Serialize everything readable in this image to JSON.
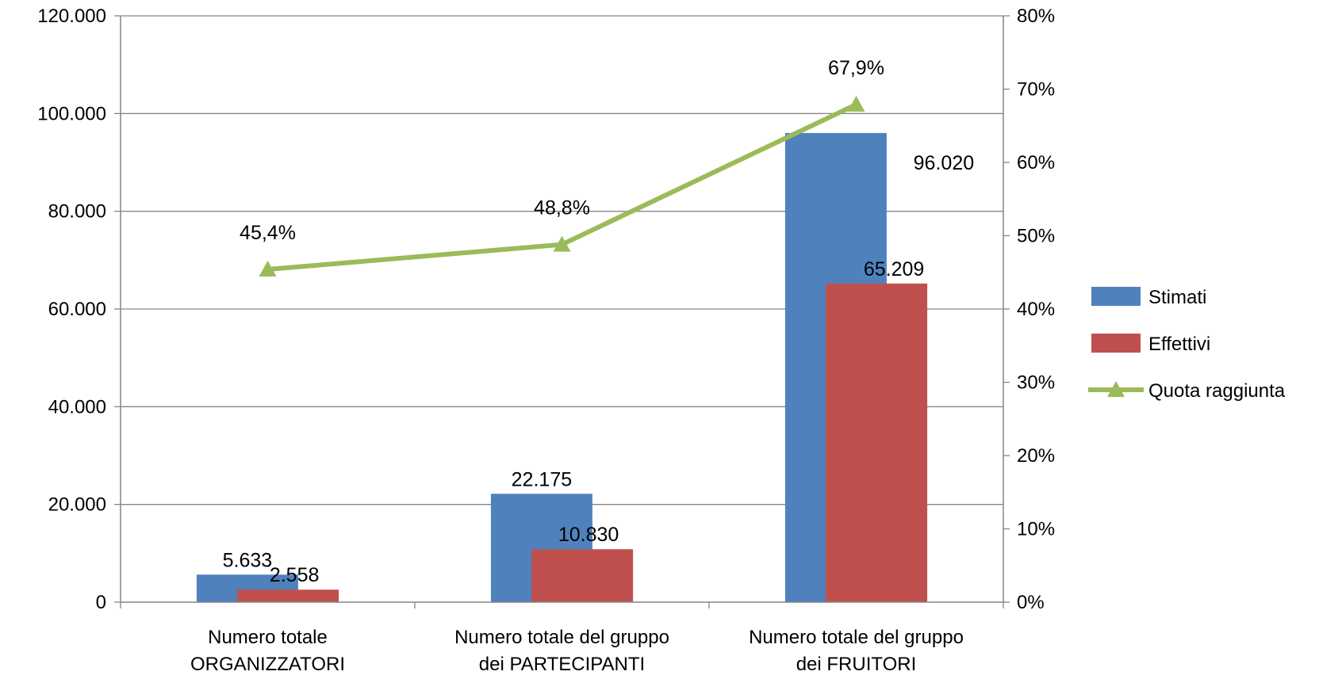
{
  "chart_data": {
    "type": "bar",
    "categories": [
      [
        "Numero totale",
        "ORGANIZZATORI"
      ],
      [
        "Numero totale del gruppo",
        "dei PARTECIPANTI"
      ],
      [
        "Numero totale del gruppo",
        "dei FRUITORI"
      ]
    ],
    "series": [
      {
        "name": "Stimati",
        "type": "bar",
        "axis": "left",
        "color": "#4F81BD",
        "values": [
          5633,
          22175,
          96020
        ],
        "labels": [
          "5.633",
          "22.175",
          "96.020"
        ]
      },
      {
        "name": "Effettivi",
        "type": "bar",
        "axis": "left",
        "color": "#C0504D",
        "values": [
          2558,
          10830,
          65209
        ],
        "labels": [
          "2.558",
          "10.830",
          "65.209"
        ]
      },
      {
        "name": "Quota raggiunta",
        "type": "line",
        "axis": "right",
        "color": "#9BBB59",
        "marker": "triangle",
        "values": [
          45.4,
          48.8,
          67.9
        ],
        "labels": [
          "45,4%",
          "48,8%",
          "67,9%"
        ]
      }
    ],
    "y_left": {
      "min": 0,
      "max": 120000,
      "step": 20000,
      "tick_labels": [
        "0",
        "20.000",
        "40.000",
        "60.000",
        "80.000",
        "100.000",
        "120.000"
      ]
    },
    "y_right": {
      "min": 0,
      "max": 80,
      "step": 10,
      "tick_labels": [
        "0%",
        "10%",
        "20%",
        "30%",
        "40%",
        "50%",
        "60%",
        "70%",
        "80%"
      ]
    },
    "grid": true,
    "legend_position": "right"
  }
}
